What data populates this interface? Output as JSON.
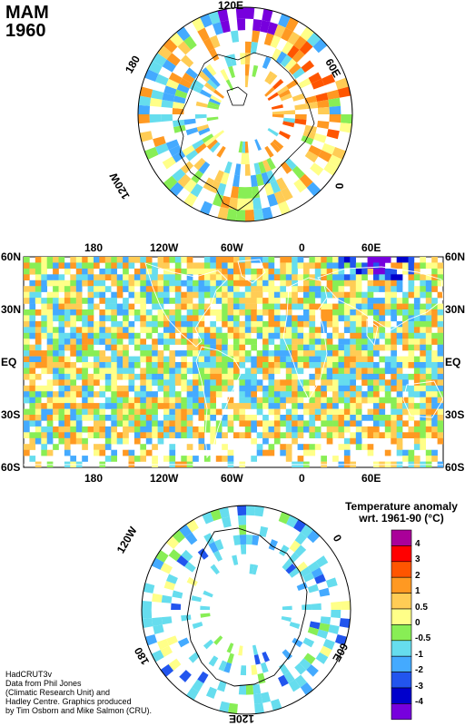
{
  "header": {
    "season": "MAM",
    "year": "1960"
  },
  "north_polar": {
    "lon_labels": [
      "120E",
      "60E",
      "0",
      "120W",
      "180"
    ]
  },
  "world_map": {
    "top_lon_labels": [
      "180",
      "120W",
      "60W",
      "0",
      "60E"
    ],
    "bottom_lon_labels": [
      "180",
      "120W",
      "60W",
      "0",
      "60E"
    ],
    "lat_labels": [
      "60N",
      "30N",
      "EQ",
      "30S",
      "60S"
    ]
  },
  "south_polar": {
    "lon_labels": [
      "120E",
      "60E",
      "0",
      "120W",
      "180"
    ]
  },
  "legend": {
    "title_line1": "Temperature anomaly",
    "title_line2": "wrt. 1961-90  (°C)",
    "levels": [
      {
        "label": "4",
        "color": "#aa0099"
      },
      {
        "label": "3",
        "color": "#ff0000"
      },
      {
        "label": "2",
        "color": "#ff5500"
      },
      {
        "label": "1",
        "color": "#ff9922"
      },
      {
        "label": "0.5",
        "color": "#ffcc55"
      },
      {
        "label": "0",
        "color": "#ffff88"
      },
      {
        "label": "-0.5",
        "color": "#88ee55"
      },
      {
        "label": "-1",
        "color": "#66ddee"
      },
      {
        "label": "-2",
        "color": "#44aaff"
      },
      {
        "label": "-3",
        "color": "#2255ee"
      },
      {
        "label": "-4",
        "color": "#0000cc"
      },
      {
        "label": "",
        "color": "#7700dd"
      }
    ]
  },
  "credit": {
    "line1": "HadCRUT3v",
    "line2": "Data from Phil Jones",
    "line3": "(Climatic Research Unit) and",
    "line4": "Hadley Centre.  Graphics produced",
    "line5": "by Tim Osborn and Mike Salmon (CRU)."
  }
}
